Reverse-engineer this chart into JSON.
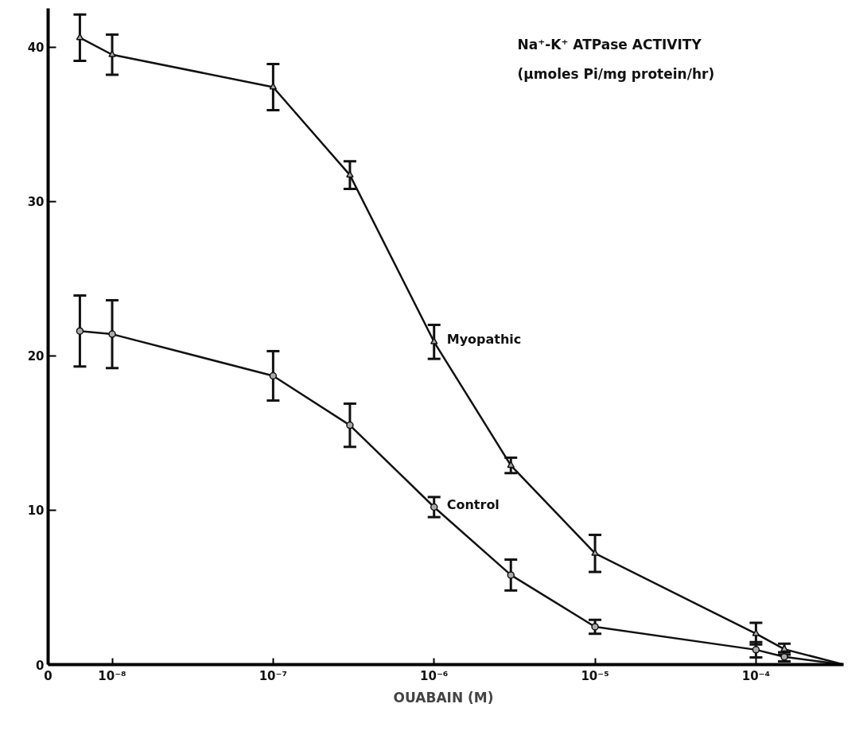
{
  "chart_data": {
    "type": "line",
    "xlabel": "OUABAIN  (M)",
    "log": "x",
    "xlim": [
      4e-09,
      0.00035
    ],
    "xticks": [
      {
        "value": 4e-09,
        "label": "0"
      },
      {
        "value": 1e-08,
        "label": "10⁻⁸"
      },
      {
        "value": 1e-07,
        "label": "10⁻⁷"
      },
      {
        "value": 1e-06,
        "label": "10⁻⁶"
      },
      {
        "value": 1e-05,
        "label": "10⁻⁵"
      },
      {
        "value": 0.0001,
        "label": "10⁻⁴"
      }
    ],
    "ylim": [
      0,
      42.5
    ],
    "yticks": [
      0,
      10,
      20,
      30,
      40
    ],
    "grid": false,
    "line_style": "solid",
    "annotations": [
      "Na⁺-K⁺ ATPase  ACTIVITY",
      "(μmoles Pi/mg protein/hr)"
    ],
    "series": [
      {
        "name": "Myopathic",
        "color": "#111111",
        "marker": "triangle",
        "x": [
          6.3e-09,
          1e-08,
          1e-07,
          3e-07,
          1e-06,
          3e-06,
          1e-05,
          0.0001,
          0.00015,
          0.00035
        ],
        "values": [
          40.6,
          39.5,
          37.4,
          31.7,
          20.9,
          12.9,
          7.2,
          2.0,
          1.0,
          0
        ],
        "errors": [
          1.5,
          1.3,
          1.5,
          0.9,
          1.1,
          0.5,
          1.2,
          0.7,
          0.35,
          null
        ]
      },
      {
        "name": "Control",
        "color": "#111111",
        "marker": "circle",
        "x": [
          6.3e-09,
          1e-08,
          1e-07,
          3e-07,
          1e-06,
          3e-06,
          1e-05,
          0.0001,
          0.00015,
          0.00035
        ],
        "values": [
          21.6,
          21.4,
          18.7,
          15.5,
          10.2,
          5.8,
          2.45,
          0.96,
          0.5,
          0
        ],
        "errors": [
          2.3,
          2.2,
          1.6,
          1.4,
          0.65,
          1.0,
          0.45,
          0.5,
          0.3,
          null
        ]
      }
    ]
  }
}
